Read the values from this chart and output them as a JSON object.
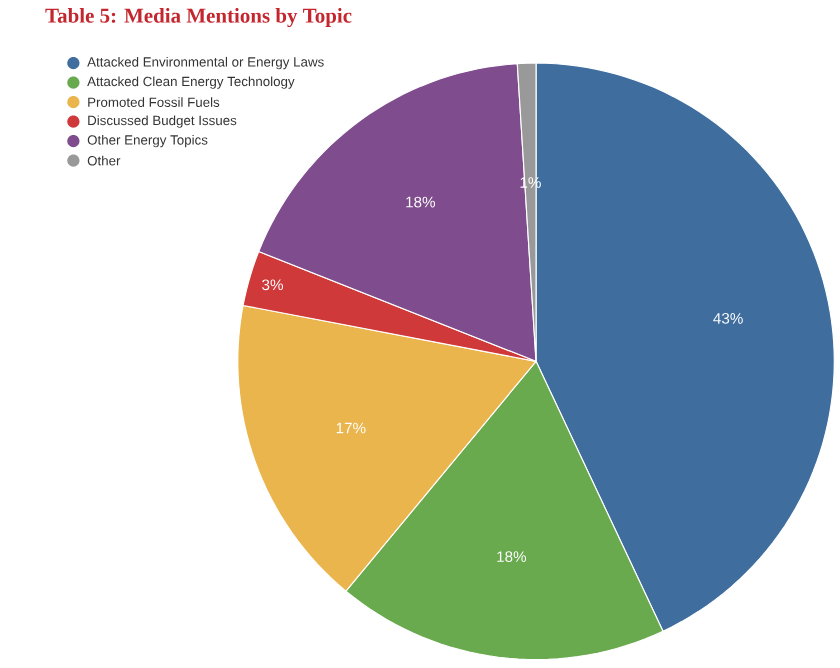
{
  "chart_data": {
    "type": "pie",
    "title": "Table 5: Media Mentions by Topic",
    "categories": [
      "Attacked Environmental or Energy Laws",
      "Attacked Clean Energy Technology",
      "Promoted Fossil Fuels",
      "Discussed Budget Issues",
      "Other Energy Topics",
      "Other"
    ],
    "values": [
      43,
      18,
      17,
      3,
      18,
      1
    ],
    "colors": [
      "#3f6e9e",
      "#6aaa4f",
      "#ebb54e",
      "#d0393a",
      "#7f4d8d",
      "#999999"
    ],
    "value_labels": [
      "43%",
      "18%",
      "17%",
      "3%",
      "18%",
      "1%"
    ],
    "legend": "top left"
  }
}
